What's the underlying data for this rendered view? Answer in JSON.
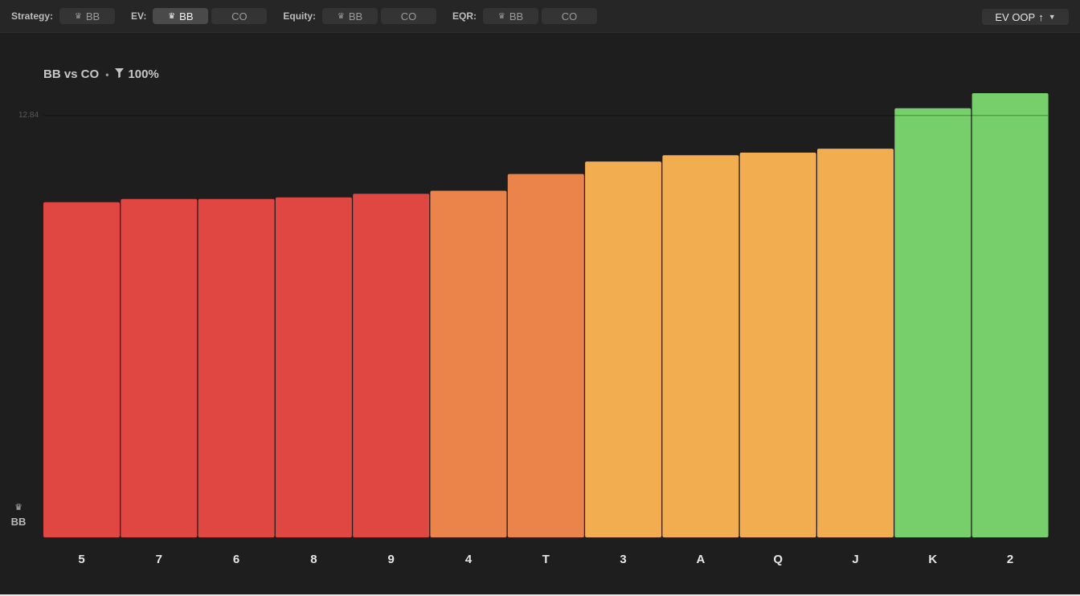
{
  "toolbar": {
    "groups": [
      {
        "label": "Strategy:",
        "options": [
          {
            "text": "BB",
            "crown": true,
            "active": false
          }
        ]
      },
      {
        "label": "EV:",
        "options": [
          {
            "text": "BB",
            "crown": true,
            "active": true
          },
          {
            "text": "CO",
            "crown": false,
            "active": false
          }
        ]
      },
      {
        "label": "Equity:",
        "options": [
          {
            "text": "BB",
            "crown": true,
            "active": false
          },
          {
            "text": "CO",
            "crown": false,
            "active": false
          }
        ]
      },
      {
        "label": "EQR:",
        "options": [
          {
            "text": "BB",
            "crown": true,
            "active": false
          },
          {
            "text": "CO",
            "crown": false,
            "active": false
          }
        ]
      }
    ],
    "sort_label": "EV OOP",
    "sort_arrow": "↑",
    "crown_icon": "♛",
    "caret_icon": "▼"
  },
  "chart_header": {
    "matchup": "BB vs CO",
    "separator": "•",
    "filter_icon": "filter-icon",
    "filter_value": "100%"
  },
  "player_tag": "BB",
  "chart_data": {
    "type": "bar",
    "categories": [
      "5",
      "7",
      "6",
      "8",
      "9",
      "4",
      "T",
      "3",
      "A",
      "Q",
      "J",
      "K",
      "2"
    ],
    "values": [
      10.2,
      10.3,
      10.3,
      10.35,
      10.46,
      10.55,
      11.06,
      11.44,
      11.63,
      11.71,
      11.83,
      13.06,
      13.52
    ],
    "reference_line": 12.84,
    "reference_label": "12.84",
    "ylim": [
      0,
      13.52
    ],
    "colors": {
      "low": "#e04742",
      "mid": "#ea844a",
      "high": "#f2ad50",
      "top": "#76cf6a"
    },
    "bar_color_groups": [
      "low",
      "low",
      "low",
      "low",
      "low",
      "mid",
      "mid",
      "high",
      "high",
      "high",
      "high",
      "top",
      "top"
    ]
  }
}
